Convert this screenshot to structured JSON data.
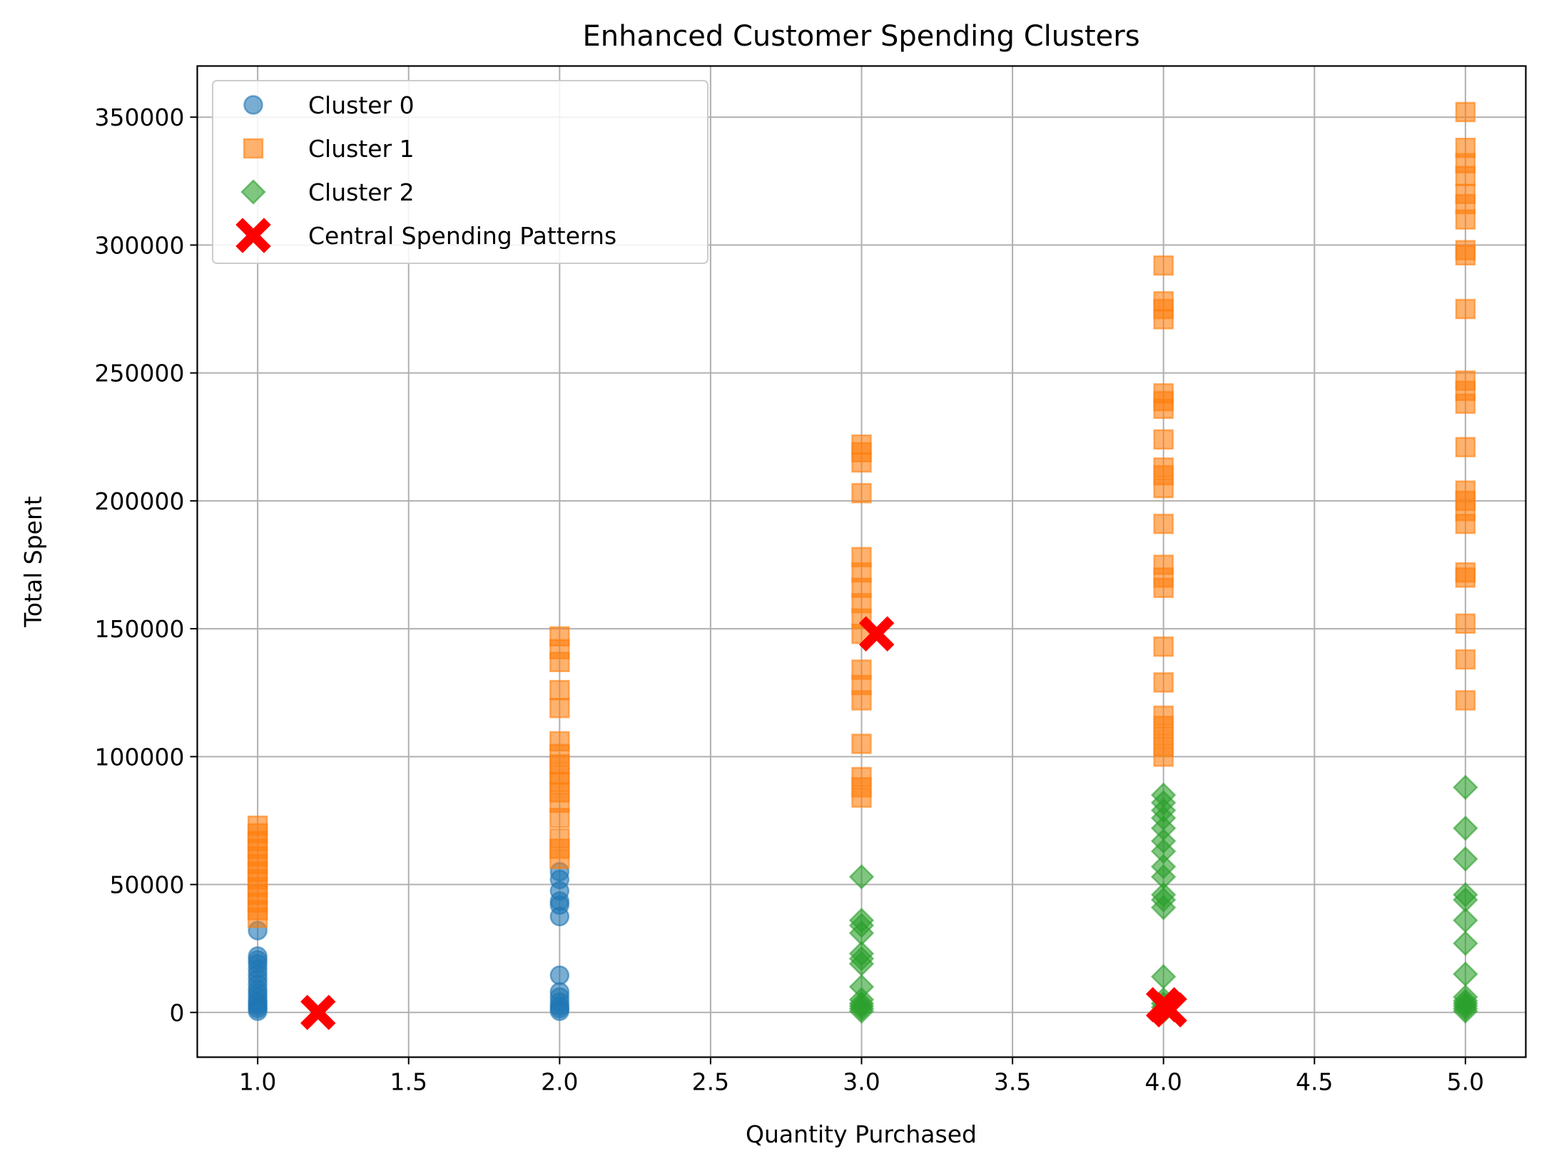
{
  "colors": {
    "cluster0": "#1f77b4",
    "cluster1": "#ff7f0e",
    "cluster2": "#2ca02c",
    "centers": "#ff0000",
    "grid": "#b0b0b0",
    "background": "#ffffff"
  },
  "chart_data": {
    "type": "scatter",
    "title": "Enhanced Customer Spending Clusters",
    "xlabel": "Quantity Purchased",
    "ylabel": "Total Spent",
    "xlim": [
      0.8,
      5.2
    ],
    "ylim": [
      -17500,
      370000
    ],
    "x_ticks": [
      1.0,
      1.5,
      2.0,
      2.5,
      3.0,
      3.5,
      4.0,
      4.5,
      5.0
    ],
    "x_tick_labels": [
      "1.0",
      "1.5",
      "2.0",
      "2.5",
      "3.0",
      "3.5",
      "4.0",
      "4.5",
      "5.0"
    ],
    "y_ticks": [
      0,
      50000,
      100000,
      150000,
      200000,
      250000,
      300000,
      350000
    ],
    "y_tick_labels": [
      "0",
      "50000",
      "100000",
      "150000",
      "200000",
      "250000",
      "300000",
      "350000"
    ],
    "grid": true,
    "legend": "top-left",
    "series": [
      {
        "name": "Cluster 0",
        "marker": "circle",
        "color": "#1f77b4",
        "points": [
          [
            1,
            500
          ],
          [
            1,
            1500
          ],
          [
            1,
            2500
          ],
          [
            1,
            3500
          ],
          [
            1,
            4500
          ],
          [
            1,
            6000
          ],
          [
            1,
            7500
          ],
          [
            1,
            9000
          ],
          [
            1,
            11000
          ],
          [
            1,
            13000
          ],
          [
            1,
            15000
          ],
          [
            1,
            17000
          ],
          [
            1,
            19000
          ],
          [
            1,
            20500
          ],
          [
            1,
            22000
          ],
          [
            1,
            32000
          ],
          [
            2,
            500
          ],
          [
            2,
            1500
          ],
          [
            2,
            2500
          ],
          [
            2,
            4000
          ],
          [
            2,
            6000
          ],
          [
            2,
            8000
          ],
          [
            2,
            14500
          ],
          [
            2,
            37500
          ],
          [
            2,
            42000
          ],
          [
            2,
            43500
          ],
          [
            2,
            47500
          ],
          [
            2,
            52000
          ],
          [
            2,
            55000
          ]
        ]
      },
      {
        "name": "Cluster 1",
        "marker": "square",
        "color": "#ff7f0e",
        "points": [
          [
            1,
            37000
          ],
          [
            1,
            40000
          ],
          [
            1,
            43000
          ],
          [
            1,
            46000
          ],
          [
            1,
            49000
          ],
          [
            1,
            52000
          ],
          [
            1,
            55000
          ],
          [
            1,
            58000
          ],
          [
            1,
            61000
          ],
          [
            1,
            64000
          ],
          [
            1,
            67000
          ],
          [
            1,
            70000
          ],
          [
            1,
            73000
          ],
          [
            2,
            60000
          ],
          [
            2,
            64000
          ],
          [
            2,
            68000
          ],
          [
            2,
            76000
          ],
          [
            2,
            82000
          ],
          [
            2,
            86000
          ],
          [
            2,
            90000
          ],
          [
            2,
            93000
          ],
          [
            2,
            97000
          ],
          [
            2,
            101000
          ],
          [
            2,
            106000
          ],
          [
            2,
            119000
          ],
          [
            2,
            126000
          ],
          [
            2,
            137000
          ],
          [
            2,
            142000
          ],
          [
            2,
            147000
          ],
          [
            3,
            84000
          ],
          [
            3,
            88000
          ],
          [
            3,
            92000
          ],
          [
            3,
            105000
          ],
          [
            3,
            122000
          ],
          [
            3,
            128000
          ],
          [
            3,
            134000
          ],
          [
            3,
            148000
          ],
          [
            3,
            154000
          ],
          [
            3,
            160000
          ],
          [
            3,
            166000
          ],
          [
            3,
            172000
          ],
          [
            3,
            178000
          ],
          [
            3,
            203000
          ],
          [
            3,
            215000
          ],
          [
            3,
            219000
          ],
          [
            3,
            222000
          ],
          [
            4,
            100000
          ],
          [
            4,
            104000
          ],
          [
            4,
            108000
          ],
          [
            4,
            112000
          ],
          [
            4,
            116000
          ],
          [
            4,
            129000
          ],
          [
            4,
            143000
          ],
          [
            4,
            166000
          ],
          [
            4,
            170000
          ],
          [
            4,
            175000
          ],
          [
            4,
            191000
          ],
          [
            4,
            205000
          ],
          [
            4,
            210000
          ],
          [
            4,
            213000
          ],
          [
            4,
            224000
          ],
          [
            4,
            236000
          ],
          [
            4,
            239000
          ],
          [
            4,
            242000
          ],
          [
            4,
            271000
          ],
          [
            4,
            275000
          ],
          [
            4,
            278000
          ],
          [
            4,
            292000
          ],
          [
            5,
            122000
          ],
          [
            5,
            138000
          ],
          [
            5,
            152000
          ],
          [
            5,
            170000
          ],
          [
            5,
            172000
          ],
          [
            5,
            191000
          ],
          [
            5,
            196000
          ],
          [
            5,
            200000
          ],
          [
            5,
            204000
          ],
          [
            5,
            221000
          ],
          [
            5,
            238000
          ],
          [
            5,
            243000
          ],
          [
            5,
            247000
          ],
          [
            5,
            275000
          ],
          [
            5,
            296000
          ],
          [
            5,
            298000
          ],
          [
            5,
            310000
          ],
          [
            5,
            316000
          ],
          [
            5,
            320000
          ],
          [
            5,
            327000
          ],
          [
            5,
            332000
          ],
          [
            5,
            338000
          ],
          [
            5,
            352000
          ]
        ]
      },
      {
        "name": "Cluster 2",
        "marker": "diamond",
        "color": "#2ca02c",
        "points": [
          [
            3,
            500
          ],
          [
            3,
            1500
          ],
          [
            3,
            2500
          ],
          [
            3,
            3500
          ],
          [
            3,
            5000
          ],
          [
            3,
            10000
          ],
          [
            3,
            19000
          ],
          [
            3,
            21000
          ],
          [
            3,
            23000
          ],
          [
            3,
            31000
          ],
          [
            3,
            34000
          ],
          [
            3,
            36000
          ],
          [
            3,
            53000
          ],
          [
            4,
            500
          ],
          [
            4,
            2000
          ],
          [
            4,
            3500
          ],
          [
            4,
            5000
          ],
          [
            4,
            14000
          ],
          [
            4,
            41000
          ],
          [
            4,
            44000
          ],
          [
            4,
            46000
          ],
          [
            4,
            53000
          ],
          [
            4,
            57000
          ],
          [
            4,
            63000
          ],
          [
            4,
            67000
          ],
          [
            4,
            72000
          ],
          [
            4,
            76000
          ],
          [
            4,
            79000
          ],
          [
            4,
            82000
          ],
          [
            4,
            85000
          ],
          [
            5,
            500
          ],
          [
            5,
            1500
          ],
          [
            5,
            2500
          ],
          [
            5,
            3500
          ],
          [
            5,
            4500
          ],
          [
            5,
            6000
          ],
          [
            5,
            15000
          ],
          [
            5,
            27000
          ],
          [
            5,
            36000
          ],
          [
            5,
            44000
          ],
          [
            5,
            46000
          ],
          [
            5,
            60000
          ],
          [
            5,
            72000
          ],
          [
            5,
            88000
          ]
        ]
      },
      {
        "name": "Central Spending Patterns",
        "marker": "x",
        "color": "#ff0000",
        "points": [
          [
            1.2,
            0
          ],
          [
            3.05,
            148000
          ],
          [
            4.02,
            1000
          ],
          [
            4.0,
            3000
          ]
        ]
      }
    ]
  }
}
